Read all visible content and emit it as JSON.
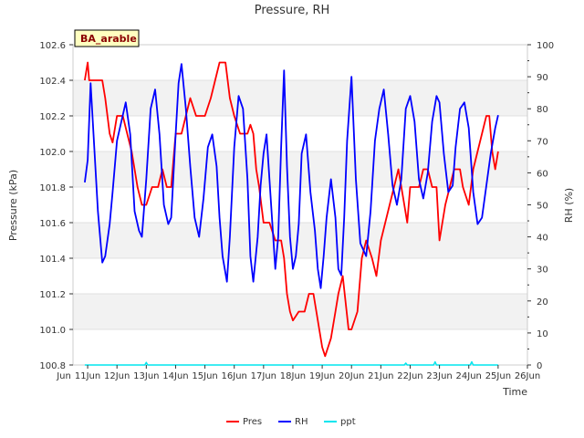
{
  "chart_data": {
    "type": "line",
    "title": "Pressure, RH",
    "site_label": "BA_arable",
    "xlabel": "Time",
    "ylabel_left": "Pressure (kPa)",
    "ylabel_right": "RH (%)",
    "xlim": [
      10.5,
      26
    ],
    "ylim_left": [
      100.8,
      102.6
    ],
    "ylim_right": [
      0,
      100
    ],
    "x_ticks": [
      {
        "v": 11,
        "label": "11Jun"
      },
      {
        "v": 12,
        "label": "12Jun"
      },
      {
        "v": 13,
        "label": "13Jun"
      },
      {
        "v": 14,
        "label": "14Jun"
      },
      {
        "v": 15,
        "label": "15Jun"
      },
      {
        "v": 16,
        "label": "16Jun"
      },
      {
        "v": 17,
        "label": "17Jun"
      },
      {
        "v": 18,
        "label": "18Jun"
      },
      {
        "v": 19,
        "label": "19Jun"
      },
      {
        "v": 20,
        "label": "20Jun"
      },
      {
        "v": 21,
        "label": "21Jun"
      },
      {
        "v": 22,
        "label": "22Jun"
      },
      {
        "v": 23,
        "label": "23Jun"
      },
      {
        "v": 24,
        "label": "24Jun"
      },
      {
        "v": 25,
        "label": "25Jun"
      },
      {
        "v": 26,
        "label": "26Jun"
      }
    ],
    "x_edge_label": "Jun",
    "y_ticks_left": [
      "100.8",
      "101.0",
      "101.2",
      "101.4",
      "101.6",
      "101.8",
      "102.0",
      "102.2",
      "102.4",
      "102.6"
    ],
    "y_ticks_right": [
      "0",
      "10",
      "20",
      "30",
      "40",
      "50",
      "60",
      "70",
      "80",
      "90",
      "100"
    ],
    "series": [
      {
        "name": "Pres",
        "color": "#ff0000",
        "axis": "left",
        "x": [
          10.9,
          11.0,
          11.05,
          11.2,
          11.5,
          11.6,
          11.75,
          11.85,
          12.0,
          12.2,
          12.35,
          12.5,
          12.7,
          12.85,
          13.0,
          13.2,
          13.4,
          13.55,
          13.7,
          13.85,
          14.0,
          14.2,
          14.35,
          14.5,
          14.7,
          14.85,
          15.0,
          15.2,
          15.35,
          15.5,
          15.7,
          15.85,
          16.0,
          16.2,
          16.35,
          16.45,
          16.55,
          16.65,
          16.75,
          16.85,
          17.0,
          17.2,
          17.4,
          17.6,
          17.7,
          17.8,
          17.9,
          18.0,
          18.2,
          18.4,
          18.55,
          18.7,
          18.8,
          18.9,
          19.0,
          19.1,
          19.3,
          19.45,
          19.55,
          19.7,
          19.9,
          20.0,
          20.2,
          20.35,
          20.5,
          20.7,
          20.85,
          21.0,
          21.15,
          21.3,
          21.45,
          21.6,
          21.8,
          21.9,
          22.0,
          22.2,
          22.3,
          22.45,
          22.6,
          22.75,
          22.9,
          23.0,
          23.2,
          23.35,
          23.5,
          23.7,
          23.8,
          24.0,
          24.15,
          24.3,
          24.45,
          24.6,
          24.7,
          24.8,
          24.9,
          25.0
        ],
        "y": [
          102.4,
          102.5,
          102.4,
          102.4,
          102.4,
          102.3,
          102.1,
          102.05,
          102.2,
          102.2,
          102.1,
          102.0,
          101.8,
          101.7,
          101.7,
          101.8,
          101.8,
          101.9,
          101.8,
          101.8,
          102.1,
          102.1,
          102.2,
          102.3,
          102.2,
          102.2,
          102.2,
          102.3,
          102.4,
          102.5,
          102.5,
          102.3,
          102.2,
          102.1,
          102.1,
          102.1,
          102.15,
          102.1,
          101.9,
          101.8,
          101.6,
          101.6,
          101.5,
          101.5,
          101.4,
          101.2,
          101.1,
          101.05,
          101.1,
          101.1,
          101.2,
          101.2,
          101.1,
          101.0,
          100.9,
          100.85,
          100.95,
          101.1,
          101.2,
          101.3,
          101.0,
          101.0,
          101.1,
          101.4,
          101.5,
          101.4,
          101.3,
          101.5,
          101.6,
          101.7,
          101.8,
          101.9,
          101.7,
          101.6,
          101.8,
          101.8,
          101.8,
          101.9,
          101.9,
          101.8,
          101.8,
          101.5,
          101.7,
          101.8,
          101.9,
          101.9,
          101.8,
          101.7,
          101.9,
          102.0,
          102.1,
          102.2,
          102.2,
          102.0,
          101.9,
          102.0
        ]
      },
      {
        "name": "RH",
        "color": "#0000ff",
        "axis": "right",
        "x": [
          10.9,
          11.0,
          11.1,
          11.2,
          11.35,
          11.5,
          11.6,
          11.75,
          11.85,
          12.0,
          12.15,
          12.3,
          12.45,
          12.6,
          12.75,
          12.85,
          13.0,
          13.15,
          13.3,
          13.45,
          13.6,
          13.75,
          13.85,
          14.0,
          14.1,
          14.2,
          14.35,
          14.5,
          14.65,
          14.8,
          14.95,
          15.1,
          15.25,
          15.4,
          15.5,
          15.6,
          15.75,
          15.85,
          16.0,
          16.15,
          16.3,
          16.45,
          16.55,
          16.65,
          16.8,
          16.9,
          17.0,
          17.1,
          17.2,
          17.3,
          17.4,
          17.5,
          17.6,
          17.7,
          17.8,
          17.9,
          18.0,
          18.1,
          18.2,
          18.3,
          18.45,
          18.6,
          18.75,
          18.85,
          18.95,
          19.05,
          19.15,
          19.3,
          19.45,
          19.55,
          19.65,
          19.75,
          19.85,
          20.0,
          20.15,
          20.3,
          20.5,
          20.65,
          20.8,
          20.95,
          21.1,
          21.25,
          21.4,
          21.55,
          21.7,
          21.85,
          22.0,
          22.15,
          22.3,
          22.45,
          22.6,
          22.75,
          22.9,
          23.0,
          23.15,
          23.3,
          23.45,
          23.55,
          23.7,
          23.85,
          24.0,
          24.15,
          24.3,
          24.45,
          24.6,
          24.75,
          24.9,
          25.0
        ],
        "y": [
          57,
          64,
          88,
          72,
          48,
          32,
          34,
          44,
          54,
          70,
          76,
          82,
          72,
          48,
          42,
          40,
          58,
          80,
          86,
          72,
          50,
          44,
          46,
          72,
          88,
          94,
          80,
          62,
          46,
          40,
          52,
          68,
          72,
          62,
          46,
          34,
          26,
          40,
          68,
          84,
          80,
          58,
          34,
          26,
          40,
          56,
          66,
          72,
          58,
          44,
          30,
          40,
          68,
          92,
          62,
          40,
          30,
          34,
          44,
          66,
          72,
          54,
          42,
          30,
          24,
          34,
          46,
          58,
          46,
          30,
          28,
          46,
          70,
          90,
          58,
          38,
          34,
          48,
          70,
          80,
          86,
          72,
          56,
          50,
          58,
          80,
          84,
          76,
          58,
          52,
          60,
          76,
          84,
          82,
          66,
          54,
          56,
          68,
          80,
          82,
          74,
          54,
          44,
          46,
          56,
          66,
          74,
          78
        ]
      },
      {
        "name": "ppt",
        "color": "#00e5ee",
        "axis": "right",
        "x": [
          10.9,
          12.95,
          13.0,
          13.05,
          21.8,
          21.85,
          21.9,
          22.8,
          22.85,
          22.9,
          24.05,
          24.1,
          24.15,
          25.0
        ],
        "y": [
          0,
          0,
          0.8,
          0,
          0,
          0.6,
          0,
          0,
          1.0,
          0,
          0,
          1.0,
          0,
          0
        ]
      }
    ],
    "legend": {
      "position": "bottom",
      "entries": [
        "Pres",
        "RH",
        "ppt"
      ]
    }
  }
}
